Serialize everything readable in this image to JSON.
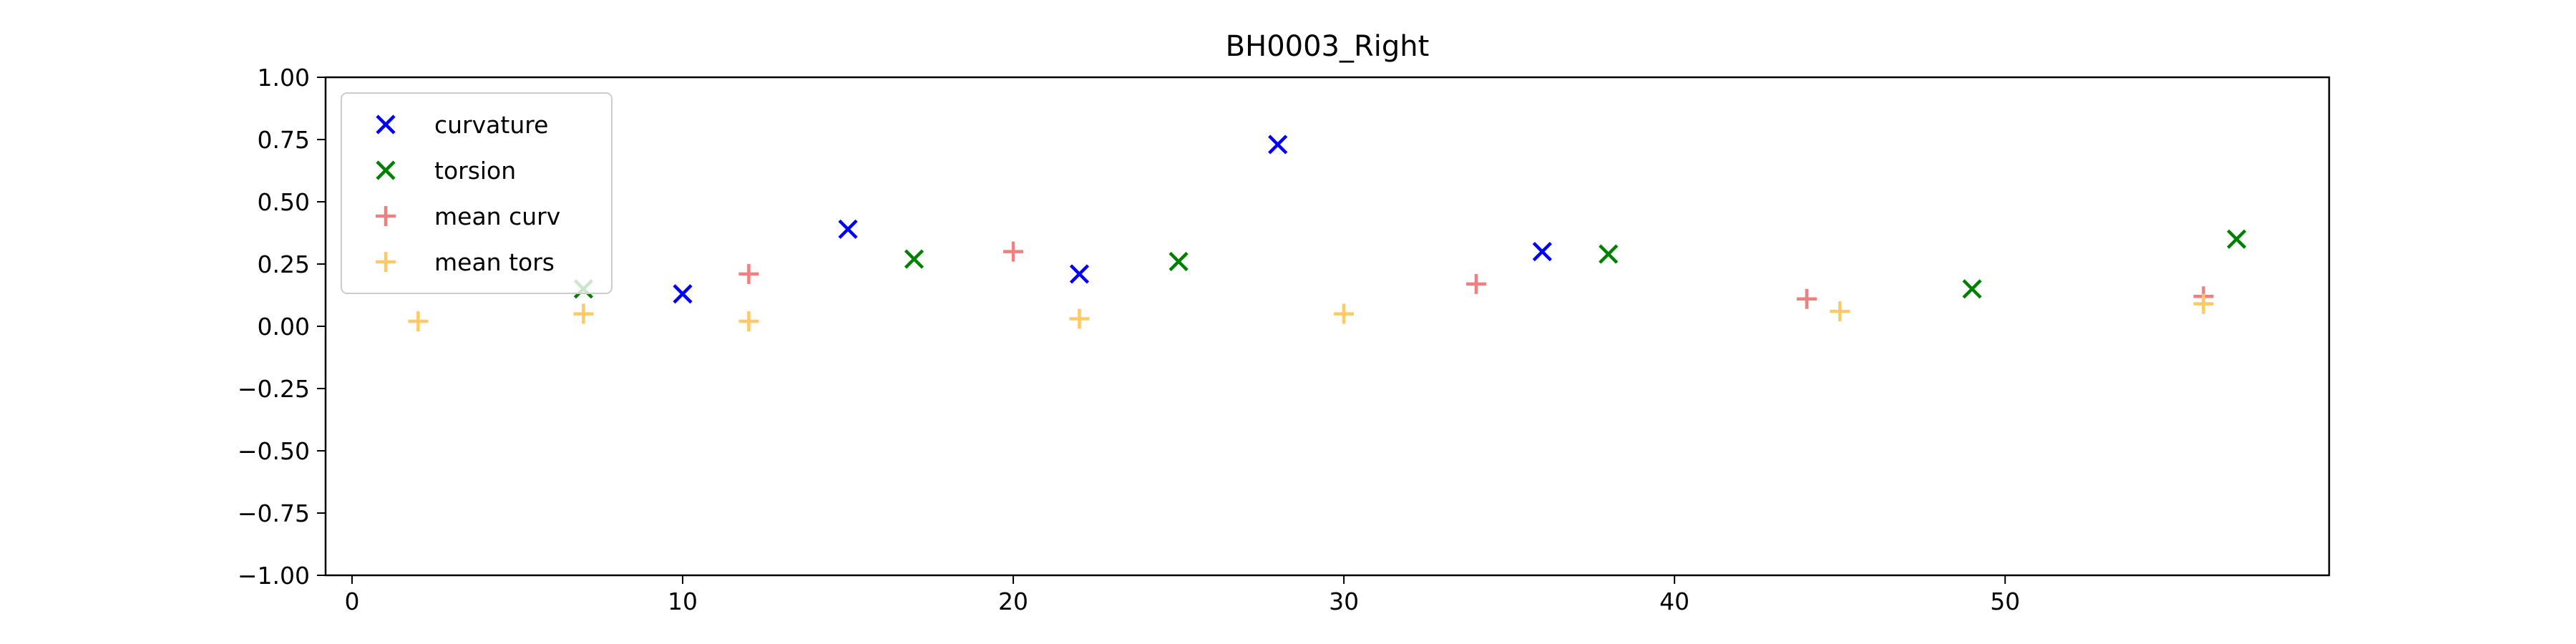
{
  "chart_data": {
    "type": "scatter",
    "title": "BH0003_Right",
    "xlabel": "",
    "ylabel": "",
    "xlim": [
      -0.8,
      59.8
    ],
    "ylim": [
      -1.0,
      1.0
    ],
    "xticks": [
      0,
      10,
      20,
      30,
      40,
      50
    ],
    "yticks": [
      -1.0,
      -0.75,
      -0.5,
      -0.25,
      0.0,
      0.25,
      0.5,
      0.75,
      1.0
    ],
    "xtick_labels": [
      "0",
      "10",
      "20",
      "30",
      "40",
      "50"
    ],
    "ytick_labels": [
      "−1.00",
      "−0.75",
      "−0.50",
      "−0.25",
      "0.00",
      "0.25",
      "0.50",
      "0.75",
      "1.00"
    ],
    "grid": false,
    "legend_position": "top-left",
    "series": [
      {
        "name": "curvature",
        "marker": "x",
        "color": "#0000ff",
        "points": [
          [
            10,
            0.13
          ],
          [
            15,
            0.39
          ],
          [
            22,
            0.21
          ],
          [
            28,
            0.73
          ],
          [
            36,
            0.3
          ]
        ]
      },
      {
        "name": "torsion",
        "marker": "x",
        "color": "#008000",
        "points": [
          [
            7,
            0.15
          ],
          [
            17,
            0.27
          ],
          [
            25,
            0.26
          ],
          [
            38,
            0.29
          ],
          [
            49,
            0.15
          ],
          [
            57,
            0.35
          ]
        ]
      },
      {
        "name": "mean curv",
        "marker": "+",
        "color": "#f08080",
        "points": [
          [
            12,
            0.21
          ],
          [
            20,
            0.3
          ],
          [
            34,
            0.17
          ],
          [
            44,
            0.11
          ],
          [
            56,
            0.12
          ]
        ]
      },
      {
        "name": "mean tors",
        "marker": "+",
        "color": "#ffc966",
        "points": [
          [
            2,
            0.02
          ],
          [
            7,
            0.05
          ],
          [
            12,
            0.02
          ],
          [
            22,
            0.03
          ],
          [
            30,
            0.05
          ],
          [
            45,
            0.06
          ],
          [
            56,
            0.09
          ]
        ]
      }
    ]
  }
}
